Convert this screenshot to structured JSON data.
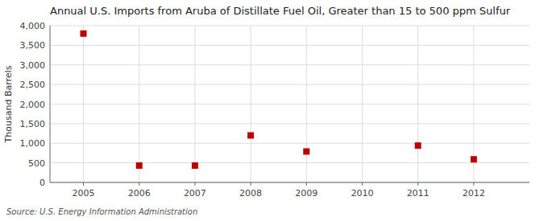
{
  "chart_data": {
    "type": "scatter",
    "title": "Annual U.S. Imports from Aruba of Distillate Fuel Oil, Greater than 15 to 500 ppm Sulfur",
    "ylabel": "Thousand Barrels",
    "source": "Source: U.S. Energy Information Administration",
    "x": [
      2005,
      2006,
      2007,
      2008,
      2009,
      2011,
      2012
    ],
    "values": [
      3800,
      430,
      430,
      1200,
      790,
      940,
      590
    ],
    "color": "#bb0000",
    "marker": "square",
    "xlim": [
      2004.4,
      2013.0
    ],
    "ylim": [
      0,
      4000
    ],
    "xticks": [
      2005,
      2006,
      2007,
      2008,
      2009,
      2010,
      2011,
      2012
    ],
    "yticks": [
      0,
      500,
      {
        "value": 1000,
        "label": "1,000"
      },
      {
        "value": 1500,
        "label": "1,500"
      },
      {
        "value": 2000,
        "label": "2,000"
      },
      {
        "value": 2500,
        "label": "2,500"
      },
      {
        "value": 3000,
        "label": "3,000"
      },
      {
        "value": 3500,
        "label": "3,500"
      },
      {
        "value": 4000,
        "label": "4,000"
      }
    ],
    "grid": true
  }
}
